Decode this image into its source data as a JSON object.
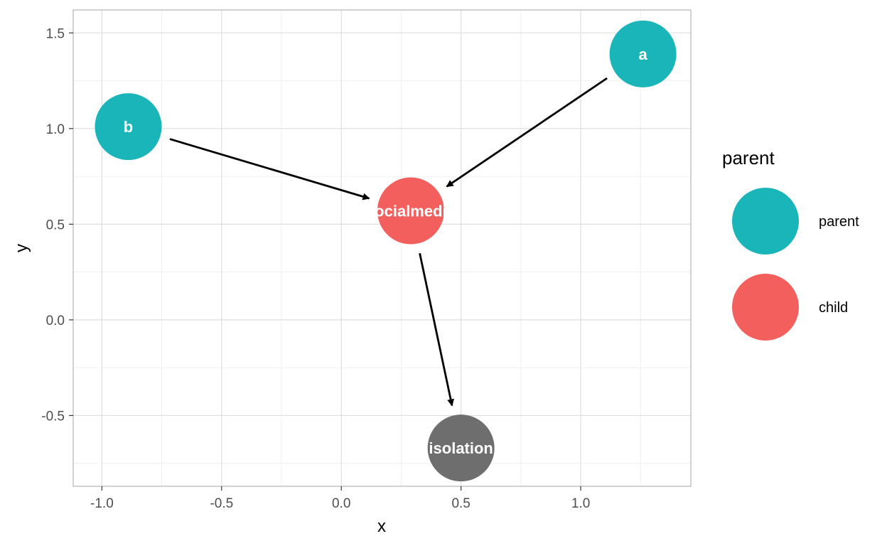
{
  "chart_data": {
    "type": "scatter",
    "subtype": "directed-graph",
    "xlabel": "x",
    "ylabel": "y",
    "xlim": [
      -1.12,
      1.46
    ],
    "ylim": [
      -0.87,
      1.62
    ],
    "x_ticks": [
      -1.0,
      -0.5,
      0.0,
      0.5,
      1.0
    ],
    "x_tick_labels": [
      "-1.0",
      "-0.5",
      "0.0",
      "0.5",
      "1.0"
    ],
    "y_ticks": [
      -0.5,
      0.0,
      0.5,
      1.0,
      1.5
    ],
    "y_tick_labels": [
      "-0.5",
      "0.0",
      "0.5",
      "1.0",
      "1.5"
    ],
    "grid": true,
    "nodes": [
      {
        "id": "a",
        "label": "a",
        "x": 1.26,
        "y": 1.39,
        "group": "parent"
      },
      {
        "id": "b",
        "label": "b",
        "x": -0.89,
        "y": 1.01,
        "group": "parent"
      },
      {
        "id": "socialmedia",
        "label": "socialmedia",
        "x": 0.29,
        "y": 0.57,
        "group": "child"
      },
      {
        "id": "isolation",
        "label": "isolation",
        "x": 0.5,
        "y": -0.67,
        "group": "none"
      }
    ],
    "edges": [
      {
        "from": "b",
        "to": "socialmedia"
      },
      {
        "from": "a",
        "to": "socialmedia"
      },
      {
        "from": "socialmedia",
        "to": "isolation"
      }
    ],
    "legend": {
      "title": "parent",
      "position": "right",
      "entries": [
        {
          "label": "parent",
          "group": "parent"
        },
        {
          "label": "child",
          "group": "child"
        }
      ]
    },
    "colors": {
      "parent": "#1AB5B9",
      "child": "#F35F5C",
      "none": "#6E6E6E"
    }
  }
}
